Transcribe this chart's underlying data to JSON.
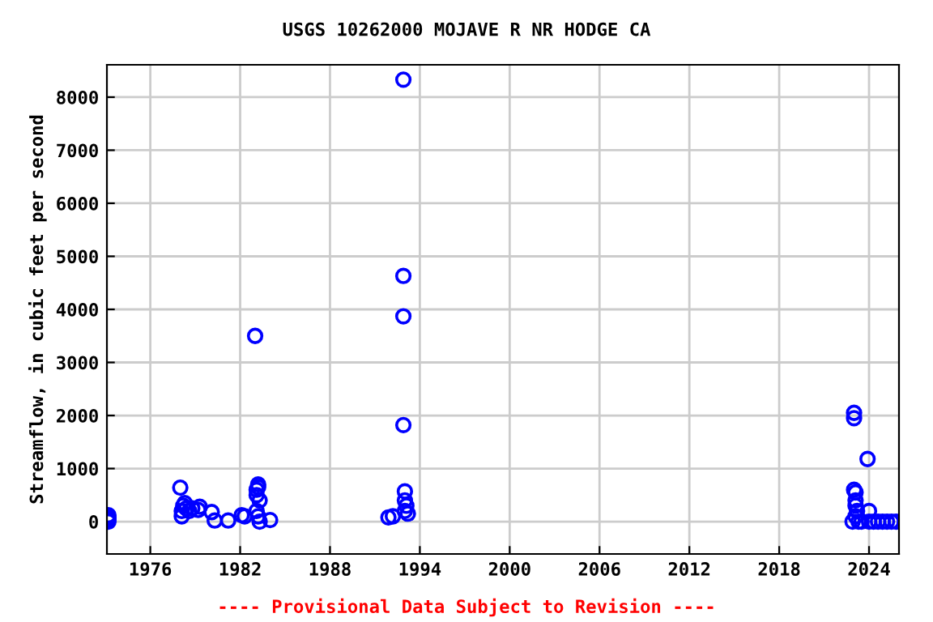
{
  "chart_data": {
    "type": "scatter",
    "title": "USGS 10262000 MOJAVE R NR HODGE CA",
    "ylabel": "Streamflow, in cubic feet per second",
    "annotations": [
      "---- Provisional Data Subject to Revision ----"
    ],
    "series": [
      {
        "color": "#0000ff",
        "x": [
          1973.2,
          1973.2,
          1973.2,
          1973.2,
          1973.2,
          1978.0,
          1978.1,
          1978.1,
          1978.2,
          1978.3,
          1978.4,
          1978.6,
          1978.8,
          1979.2,
          1979.3,
          1980.1,
          1980.3,
          1981.2,
          1982.1,
          1982.3,
          1983.0,
          1983.1,
          1983.1,
          1983.2,
          1983.2,
          1983.3,
          1983.1,
          1983.2,
          1983.3,
          1984.0,
          1991.9,
          1992.2,
          1992.9,
          1992.9,
          1992.9,
          1992.9,
          1993.0,
          1993.0,
          1993.1,
          1993.0,
          1993.2,
          2022.9,
          2023.0,
          2023.0,
          2023.0,
          2023.1,
          2023.1,
          2023.1,
          2023.2,
          2023.1,
          2023.3,
          2023.5,
          2023.9,
          2024.0,
          2024.0,
          2024.3,
          2024.6,
          2024.9,
          2025.2,
          2025.5,
          2025.8
        ],
        "values": [
          0,
          30,
          60,
          90,
          120,
          640,
          100,
          200,
          300,
          350,
          250,
          200,
          250,
          220,
          280,
          180,
          20,
          20,
          120,
          100,
          3500,
          500,
          600,
          700,
          650,
          400,
          200,
          100,
          0,
          30,
          80,
          100,
          8330,
          4630,
          3870,
          1820,
          570,
          400,
          300,
          200,
          150,
          0,
          2050,
          1950,
          600,
          550,
          400,
          300,
          200,
          100,
          0,
          0,
          1180,
          200,
          0,
          0,
          0,
          0,
          0,
          0,
          0
        ]
      }
    ],
    "xlim": [
      1973.1,
      2026
    ],
    "ylim": [
      -610,
      8610
    ],
    "xticks": [
      1976,
      1982,
      1988,
      1994,
      2000,
      2006,
      2012,
      2018,
      2024
    ],
    "yticks": [
      0,
      1000,
      2000,
      3000,
      4000,
      5000,
      6000,
      7000,
      8000
    ],
    "grid": true,
    "marker": "circle",
    "tick_labels": true
  }
}
